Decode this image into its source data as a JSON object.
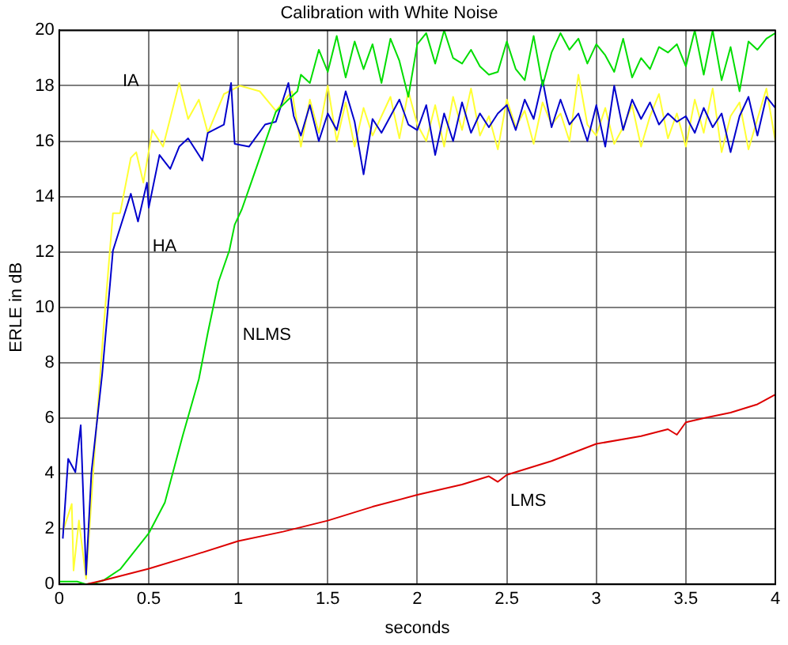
{
  "chart_data": {
    "type": "line",
    "title": "Calibration with White Noise",
    "xlabel": "seconds",
    "ylabel": "ERLE in dB",
    "xlim": [
      0,
      4
    ],
    "xticks": [
      0,
      0.5,
      1,
      1.5,
      2,
      2.5,
      3,
      3.5,
      4
    ],
    "ylim": [
      0,
      20
    ],
    "yticks": [
      0,
      2,
      4,
      6,
      8,
      10,
      12,
      14,
      16,
      18,
      20
    ],
    "grid": true,
    "legend": false,
    "marker": "none",
    "line_style": "solid",
    "series": [
      {
        "name": "LMS",
        "color": "#dd0000",
        "x": [
          0.15,
          0.25,
          0.5,
          0.75,
          1,
          1.25,
          1.5,
          1.75,
          2,
          2.25,
          2.4,
          2.45,
          2.5,
          2.75,
          3,
          3.25,
          3.4,
          3.45,
          3.5,
          3.6,
          3.75,
          3.9,
          4
        ],
        "values": [
          0,
          0.15,
          0.56,
          1.05,
          1.56,
          1.9,
          2.3,
          2.8,
          3.23,
          3.6,
          3.9,
          3.7,
          3.95,
          4.45,
          5.07,
          5.35,
          5.6,
          5.4,
          5.85,
          6,
          6.2,
          6.5,
          6.85
        ]
      },
      {
        "name": "NLMS",
        "color": "#00dd00",
        "x": [
          0,
          0.1,
          0.15,
          0.2,
          0.25,
          0.34,
          0.5,
          0.59,
          0.69,
          0.78,
          0.83,
          0.89,
          0.95,
          0.98,
          1.02,
          1.06,
          1.12,
          1.17,
          1.21,
          1.27,
          1.33,
          1.35,
          1.4,
          1.45,
          1.5,
          1.55,
          1.6,
          1.65,
          1.7,
          1.75,
          1.8,
          1.85,
          1.9,
          1.95,
          2,
          2.05,
          2.1,
          2.15,
          2.2,
          2.25,
          2.3,
          2.35,
          2.4,
          2.45,
          2.5,
          2.55,
          2.6,
          2.65,
          2.7,
          2.75,
          2.8,
          2.85,
          2.9,
          2.95,
          3,
          3.05,
          3.1,
          3.15,
          3.2,
          3.25,
          3.3,
          3.35,
          3.4,
          3.45,
          3.5,
          3.55,
          3.6,
          3.65,
          3.7,
          3.75,
          3.8,
          3.85,
          3.9,
          3.95,
          4
        ],
        "values": [
          0.1,
          0.1,
          0,
          0.05,
          0.15,
          0.54,
          1.84,
          2.95,
          5.37,
          7.41,
          9.08,
          10.93,
          12.05,
          12.98,
          13.54,
          14.28,
          15.39,
          16.32,
          17.06,
          17.44,
          17.8,
          18.4,
          18.1,
          19.3,
          18.5,
          19.8,
          18.3,
          19.6,
          18.6,
          19.5,
          18.1,
          19.7,
          18.9,
          17.6,
          19.5,
          19.9,
          18.8,
          20,
          19,
          18.8,
          19.3,
          18.7,
          18.4,
          18.5,
          19.6,
          18.6,
          18.2,
          19.8,
          18,
          19.2,
          19.9,
          19.3,
          19.7,
          18.8,
          19.5,
          19.1,
          18.5,
          19.7,
          18.3,
          19,
          18.6,
          19.4,
          19.2,
          19.5,
          18.7,
          20,
          18.4,
          20,
          18.2,
          19.4,
          17.8,
          19.6,
          19.3,
          19.7,
          19.9
        ]
      },
      {
        "name": "HA",
        "color": "#0000cc",
        "x": [
          0.02,
          0.05,
          0.09,
          0.12,
          0.15,
          0.18,
          0.24,
          0.3,
          0.4,
          0.44,
          0.49,
          0.5,
          0.56,
          0.62,
          0.67,
          0.72,
          0.8,
          0.83,
          0.92,
          0.96,
          0.98,
          1.06,
          1.15,
          1.21,
          1.28,
          1.31,
          1.35,
          1.4,
          1.45,
          1.5,
          1.55,
          1.6,
          1.65,
          1.7,
          1.75,
          1.8,
          1.85,
          1.9,
          1.95,
          2,
          2.05,
          2.1,
          2.15,
          2.2,
          2.25,
          2.3,
          2.35,
          2.4,
          2.45,
          2.5,
          2.55,
          2.6,
          2.65,
          2.7,
          2.75,
          2.8,
          2.85,
          2.9,
          2.95,
          3,
          3.05,
          3.1,
          3.15,
          3.2,
          3.25,
          3.3,
          3.35,
          3.4,
          3.45,
          3.5,
          3.55,
          3.6,
          3.65,
          3.7,
          3.75,
          3.8,
          3.85,
          3.9,
          3.95,
          4
        ],
        "values": [
          1.65,
          4.53,
          4.05,
          5.74,
          0.35,
          4.05,
          7.6,
          12.05,
          14.1,
          13.1,
          14.5,
          13.6,
          15.5,
          15,
          15.8,
          16.1,
          15.3,
          16.3,
          16.6,
          18.1,
          15.9,
          15.8,
          16.6,
          16.7,
          18.1,
          16.9,
          16.2,
          17.3,
          16,
          17,
          16.4,
          17.8,
          16.7,
          14.8,
          16.8,
          16.3,
          16.9,
          17.5,
          16.6,
          16.4,
          17.3,
          15.5,
          17,
          16,
          17.4,
          16.3,
          17,
          16.5,
          17,
          17.3,
          16.4,
          17.5,
          16.8,
          18.2,
          16.5,
          17.5,
          16.6,
          17,
          16,
          17.3,
          15.8,
          18,
          16.4,
          17.5,
          16.8,
          17.4,
          16.6,
          17,
          16.7,
          16.9,
          16.3,
          17.2,
          16.5,
          17,
          15.6,
          16.9,
          17.6,
          16.2,
          17.6,
          17.2
        ]
      },
      {
        "name": "IA",
        "color": "#ffff33",
        "x": [
          0.02,
          0.07,
          0.08,
          0.11,
          0.15,
          0.2,
          0.25,
          0.3,
          0.34,
          0.4,
          0.43,
          0.47,
          0.52,
          0.58,
          0.67,
          0.72,
          0.78,
          0.83,
          0.92,
          1.01,
          1.12,
          1.21,
          1.3,
          1.35,
          1.4,
          1.45,
          1.5,
          1.55,
          1.6,
          1.65,
          1.7,
          1.75,
          1.8,
          1.85,
          1.9,
          1.95,
          2,
          2.05,
          2.1,
          2.15,
          2.2,
          2.25,
          2.3,
          2.35,
          2.4,
          2.45,
          2.5,
          2.55,
          2.6,
          2.65,
          2.7,
          2.75,
          2.8,
          2.85,
          2.9,
          2.95,
          3,
          3.05,
          3.1,
          3.15,
          3.2,
          3.25,
          3.3,
          3.35,
          3.4,
          3.45,
          3.5,
          3.55,
          3.6,
          3.65,
          3.7,
          3.75,
          3.8,
          3.85,
          3.9,
          3.95,
          4
        ],
        "values": [
          1.9,
          2.9,
          0.5,
          2.3,
          0.2,
          5,
          9.45,
          13.4,
          13.4,
          15.4,
          15.6,
          14.5,
          16.4,
          15.8,
          18.1,
          16.8,
          17.5,
          16.3,
          17.7,
          18,
          17.8,
          17.1,
          17.8,
          15.8,
          17.5,
          16.3,
          18,
          16,
          17.4,
          15.8,
          17.2,
          16.2,
          16.9,
          17.6,
          16.1,
          17.8,
          16.6,
          16,
          17.3,
          15.8,
          17.6,
          16.4,
          17.9,
          16.2,
          16.9,
          15.7,
          17.5,
          16.5,
          17.1,
          15.9,
          17.4,
          16.6,
          17,
          16,
          18.4,
          16.6,
          16.2,
          17.2,
          15.9,
          16.5,
          17.3,
          15.8,
          16.9,
          17.7,
          16.1,
          17,
          15.8,
          17.5,
          16.3,
          17.9,
          15.6,
          16.9,
          17.4,
          15.7,
          16.8,
          17.9,
          16
        ]
      }
    ]
  }
}
